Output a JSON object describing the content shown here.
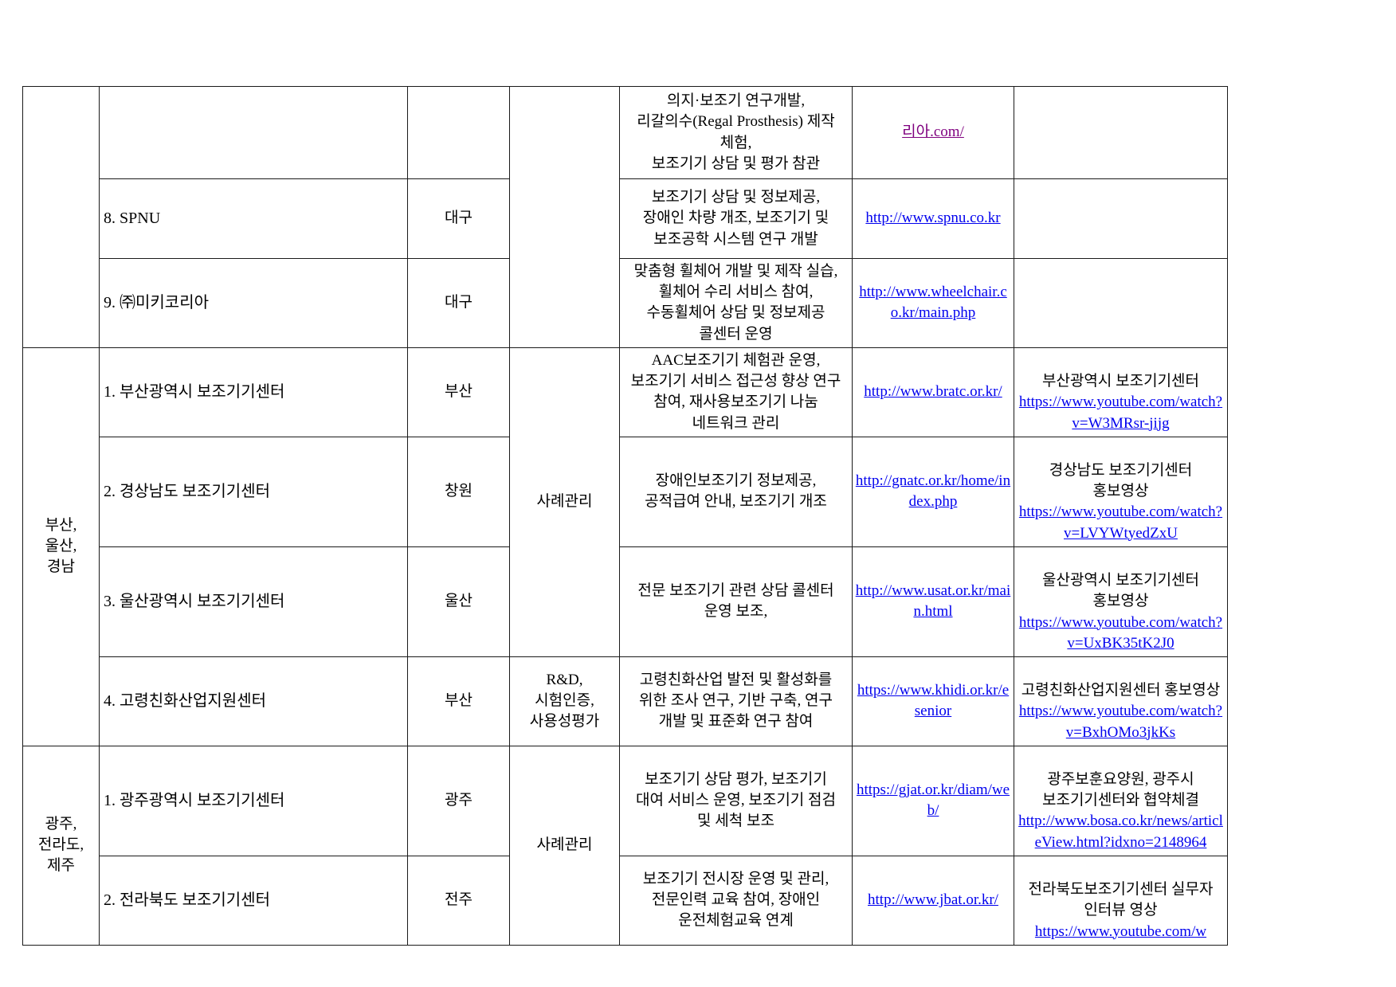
{
  "link_colors": {
    "normal": "#0000ee",
    "visited": "#7f007f"
  },
  "sections": [
    {
      "region": "",
      "category_main": "",
      "rows": [
        {
          "name": "",
          "city": "",
          "desc": "의지·보조기 연구개발,\n리갈의수(Regal Prosthesis) 제작\n체험,\n보조기기 상담 및 평가 참관",
          "url": "리아.com/",
          "extra_text": "",
          "extra_link": ""
        },
        {
          "name": "8. SPNU",
          "city": "대구",
          "desc": "보조기기 상담 및 정보제공,\n장애인 차량 개조,  보조기기 및\n보조공학 시스템 연구 개발",
          "url": "http://www.spnu.co.kr",
          "extra_text": "",
          "extra_link": ""
        },
        {
          "name": "9. ㈜미키코리아",
          "city": "대구",
          "desc": "맞춤형 휠체어 개발 및 제작 실습,\n휠체어 수리 서비스 참여,\n수동휠체어 상담 및 정보제공\n콜센터 운영",
          "url": "http://www.wheelchair.co.kr/main.php",
          "extra_text": "",
          "extra_link": ""
        }
      ]
    },
    {
      "region": "부산,\n울산,\n경남",
      "category_main": "사례관리",
      "category_last": "R&D,\n시험인증,\n사용성평가",
      "rows": [
        {
          "name": "1. 부산광역시 보조기기센터",
          "city": "부산",
          "desc": "AAC보조기기 체험관 운영,\n보조기기 서비스 접근성 향상 연구\n참여, 재사용보조기기 나눔\n네트워크 관리",
          "url": "http://www.bratc.or.kr/",
          "extra_text": "부산광역시 보조기기센터",
          "extra_link": "https://www.youtube.com/watch?v=W3MRsr-jijg"
        },
        {
          "name": "2. 경상남도 보조기기센터",
          "city": "창원",
          "desc": "장애인보조기기 정보제공,\n공적급여 안내, 보조기기 개조",
          "url": "http://gnatc.or.kr/home/index.php",
          "extra_text": "경상남도 보조기기센터\n홍보영상",
          "extra_link": "https://www.youtube.com/watch?v=LVYWtyedZxU"
        },
        {
          "name": "3. 울산광역시 보조기기센터",
          "city": "울산",
          "desc": "전문 보조기기 관련 상담 콜센터\n운영 보조,",
          "url": "http://www.usat.or.kr/main.html",
          "extra_text": "울산광역시 보조기기센터\n홍보영상",
          "extra_link": "https://www.youtube.com/watch?v=UxBK35tK2J0"
        },
        {
          "name": "4. 고령친화산업지원센터",
          "city": "부산",
          "desc": "고령친화산업 발전 및 활성화를\n위한 조사 연구, 기반 구축, 연구\n개발 및 표준화 연구 참여",
          "url": "https://www.khidi.or.kr/esenior",
          "extra_text": "고령친화산업지원센터 홍보영상",
          "extra_link": "https://www.youtube.com/watch?v=BxhOMo3jkKs"
        }
      ]
    },
    {
      "region": "광주,\n전라도,\n제주",
      "category_main": "사례관리",
      "rows": [
        {
          "name": "1. 광주광역시 보조기기센터",
          "city": "광주",
          "desc": "보조기기 상담 평가, 보조기기\n대여 서비스 운영, 보조기기 점검\n및 세척 보조",
          "url": "https://gjat.or.kr/diam/web/",
          "extra_text": "광주보훈요양원, 광주시\n보조기기센터와 협약체결",
          "extra_link": "http://www.bosa.co.kr/news/articleView.html?idxno=2148964"
        },
        {
          "name": "2. 전라북도 보조기기센터",
          "city": "전주",
          "desc": "보조기기 전시장 운영 및 관리,\n전문인력 교육 참여, 장애인\n운전체험교육 연계",
          "url": "http://www.jbat.or.kr/",
          "extra_text": "전라북도보조기기센터 실무자\n인터뷰 영상",
          "extra_link": "https://www.youtube.com/w"
        }
      ]
    }
  ]
}
